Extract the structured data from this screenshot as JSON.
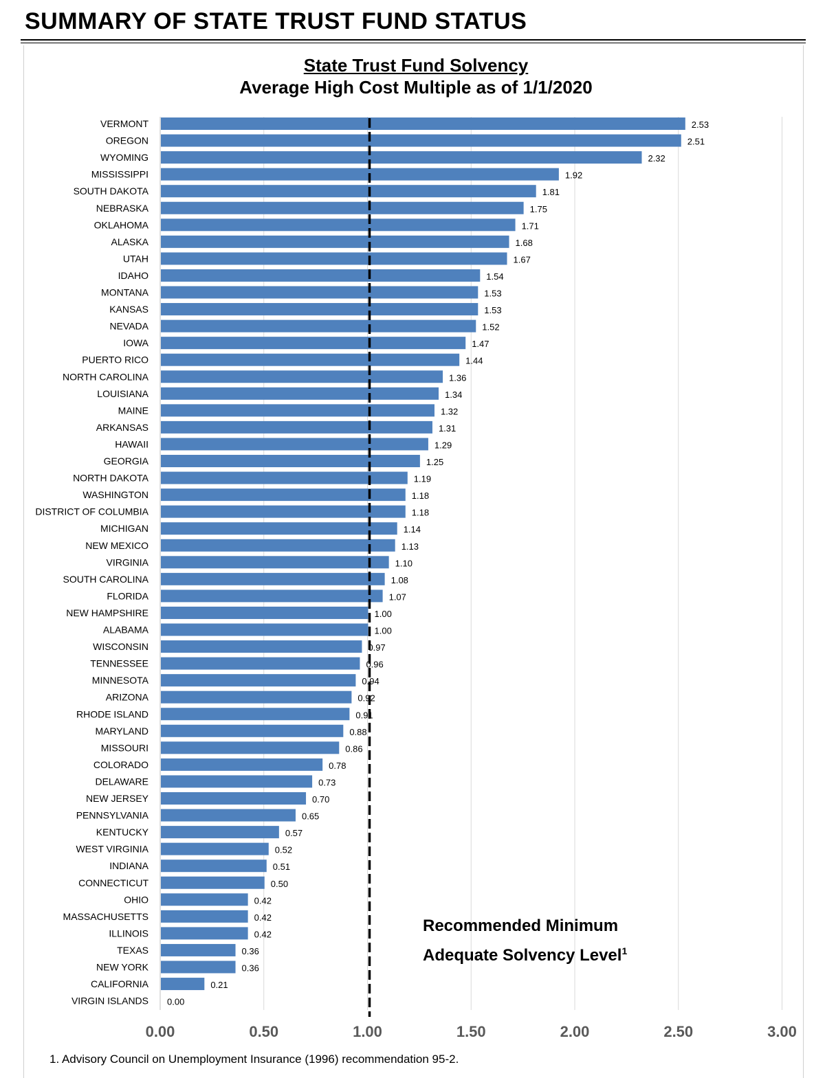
{
  "page": {
    "title": "SUMMARY OF STATE TRUST FUND STATUS"
  },
  "chart_data": {
    "type": "bar",
    "orientation": "horizontal",
    "title": "State Trust Fund Solvency",
    "subtitle": "Average High Cost Multiple as of 1/1/2020",
    "xlabel": "",
    "ylabel": "",
    "xlim": [
      0,
      3
    ],
    "x_ticks": [
      "0.00",
      "0.50",
      "1.00",
      "1.50",
      "2.00",
      "2.50",
      "3.00"
    ],
    "grid": "vertical",
    "bar_color": "#4F81BD",
    "categories": [
      "VERMONT",
      "OREGON",
      "WYOMING",
      "MISSISSIPPI",
      "SOUTH DAKOTA",
      "NEBRASKA",
      "OKLAHOMA",
      "ALASKA",
      "UTAH",
      "IDAHO",
      "MONTANA",
      "KANSAS",
      "NEVADA",
      "IOWA",
      "PUERTO RICO",
      "NORTH CAROLINA",
      "LOUISIANA",
      "MAINE",
      "ARKANSAS",
      "HAWAII",
      "GEORGIA",
      "NORTH DAKOTA",
      "WASHINGTON",
      "DISTRICT OF COLUMBIA",
      "MICHIGAN",
      "NEW MEXICO",
      "VIRGINIA",
      "SOUTH CAROLINA",
      "FLORIDA",
      "NEW HAMPSHIRE",
      "ALABAMA",
      "WISCONSIN",
      "TENNESSEE",
      "MINNESOTA",
      "ARIZONA",
      "RHODE ISLAND",
      "MARYLAND",
      "MISSOURI",
      "COLORADO",
      "DELAWARE",
      "NEW JERSEY",
      "PENNSYLVANIA",
      "KENTUCKY",
      "WEST VIRGINIA",
      "INDIANA",
      "CONNECTICUT",
      "OHIO",
      "MASSACHUSETTS",
      "ILLINOIS",
      "TEXAS",
      "NEW YORK",
      "CALIFORNIA",
      "VIRGIN ISLANDS"
    ],
    "values": [
      2.53,
      2.51,
      2.32,
      1.92,
      1.81,
      1.75,
      1.71,
      1.68,
      1.67,
      1.54,
      1.53,
      1.53,
      1.52,
      1.47,
      1.44,
      1.36,
      1.34,
      1.32,
      1.31,
      1.29,
      1.25,
      1.19,
      1.18,
      1.18,
      1.14,
      1.13,
      1.1,
      1.08,
      1.07,
      1.0,
      1.0,
      0.97,
      0.96,
      0.94,
      0.92,
      0.91,
      0.88,
      0.86,
      0.78,
      0.73,
      0.7,
      0.65,
      0.57,
      0.52,
      0.51,
      0.5,
      0.42,
      0.42,
      0.42,
      0.36,
      0.36,
      0.21,
      0.0
    ],
    "value_labels": [
      "2.53",
      "2.51",
      "2.32",
      "1.92",
      "1.81",
      "1.75",
      "1.71",
      "1.68",
      "1.67",
      "1.54",
      "1.53",
      "1.53",
      "1.52",
      "1.47",
      "1.44",
      "1.36",
      "1.34",
      "1.32",
      "1.31",
      "1.29",
      "1.25",
      "1.19",
      "1.18",
      "1.18",
      "1.14",
      "1.13",
      "1.10",
      "1.08",
      "1.07",
      "1.00",
      "1.00",
      "0.97",
      "0.96",
      "0.94",
      "0.92",
      "0.91",
      "0.88",
      "0.86",
      "0.78",
      "0.73",
      "0.70",
      "0.65",
      "0.57",
      "0.52",
      "0.51",
      "0.50",
      "0.42",
      "0.42",
      "0.42",
      "0.36",
      "0.36",
      "0.21",
      "0.00"
    ],
    "reference_line": {
      "value": 1.0,
      "style": "dashed"
    },
    "annotation": {
      "line1": "Recommended Minimum",
      "line2": "Adequate Solvency Level",
      "superscript": "1"
    }
  },
  "footnote": "1. Advisory Council on Unemployment Insurance (1996) recommendation 95-2."
}
